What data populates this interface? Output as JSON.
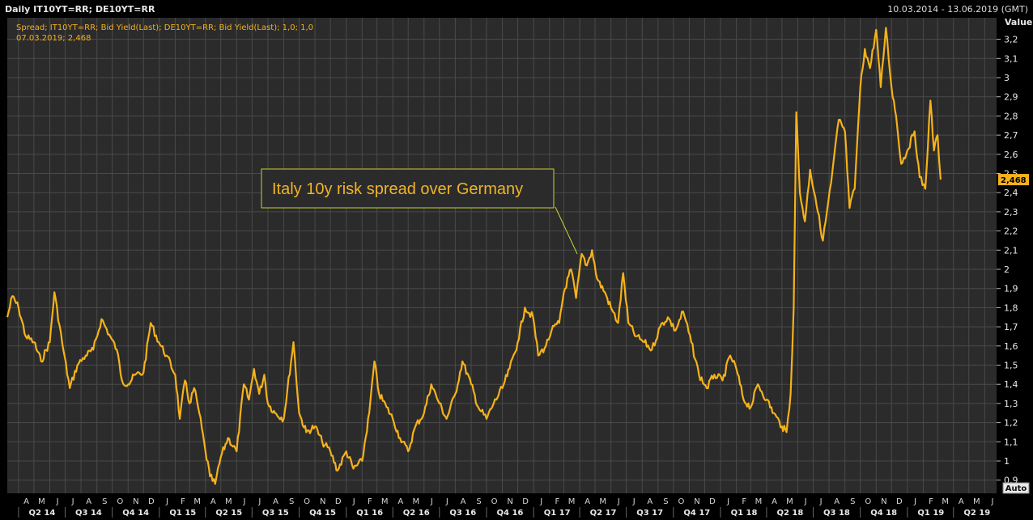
{
  "header": {
    "title": "Daily IT10YT=RR; DE10YT=RR",
    "date_range": "10.03.2014 - 13.06.2019 (GMT)"
  },
  "legend": {
    "line1": "Spread; IT10YT=RR; Bid Yield(Last); DE10YT=RR; Bid Yield(Last);  1,0; 1,0",
    "line2": "07.03.2019; 2,468"
  },
  "annotation": {
    "text": "Italy 10y risk spread over Germany"
  },
  "axis": {
    "value_header": "Value",
    "last_value_label": "2,468",
    "auto_label": "Auto"
  },
  "colors": {
    "background": "#000000",
    "plot_background": "#2b2b2b",
    "grid": "#4a4a4a",
    "series": "#f5b21a",
    "annotation_border": "#c8d232"
  },
  "chart_data": {
    "type": "line",
    "title": "Daily IT10YT=RR; DE10YT=RR",
    "ylim": [
      0.83,
      3.3
    ],
    "xlim": [
      "2014-03-10",
      "2019-06-13"
    ],
    "y_ticks": [
      0.9,
      1,
      1.1,
      1.2,
      1.3,
      1.4,
      1.5,
      1.6,
      1.7,
      1.8,
      1.9,
      2,
      2.1,
      2.2,
      2.3,
      2.4,
      2.5,
      2.6,
      2.7,
      2.8,
      2.9,
      3,
      3.1,
      3.2
    ],
    "y_tick_labels": [
      "0,9",
      "1",
      "1,1",
      "1,2",
      "1,3",
      "1,4",
      "1,5",
      "1,6",
      "1,7",
      "1,8",
      "1,9",
      "2",
      "2,1",
      "2,2",
      "2,3",
      "2,4",
      "2,5",
      "2,6",
      "2,7",
      "2,8",
      "2,9",
      "3",
      "3,1",
      "3,2"
    ],
    "grid": true,
    "month_labels": [
      "A",
      "M",
      "J",
      "J",
      "A",
      "S",
      "O",
      "N",
      "D",
      "J",
      "F",
      "M",
      "A",
      "M",
      "J",
      "J",
      "A",
      "S",
      "O",
      "N",
      "D",
      "J",
      "F",
      "M",
      "A",
      "M",
      "J",
      "J",
      "A",
      "S",
      "O",
      "N",
      "D",
      "J",
      "F",
      "M",
      "A",
      "M",
      "J",
      "J",
      "A",
      "S",
      "O",
      "N",
      "D",
      "J",
      "F",
      "M",
      "A",
      "M",
      "J",
      "J",
      "A",
      "S",
      "O",
      "N",
      "D",
      "J",
      "F",
      "M",
      "A",
      "M",
      "J"
    ],
    "quarter_labels": [
      "Q2 14",
      "Q3 14",
      "Q4 14",
      "Q1 15",
      "Q2 15",
      "Q3 15",
      "Q4 15",
      "Q1 16",
      "Q2 16",
      "Q3 16",
      "Q4 16",
      "Q1 17",
      "Q2 17",
      "Q3 17",
      "Q4 17",
      "Q1 18",
      "Q2 18",
      "Q3 18",
      "Q4 18",
      "Q1 19",
      "Q2 19"
    ],
    "series": [
      {
        "name": "Spread; IT10YT=RR; Bid Yield(Last); DE10YT=RR; Bid Yield(Last);  1,0; 1,0",
        "points": [
          [
            "2014-03-10",
            1.75
          ],
          [
            "2014-03-20",
            1.86
          ],
          [
            "2014-04-01",
            1.8
          ],
          [
            "2014-04-15",
            1.65
          ],
          [
            "2014-05-01",
            1.62
          ],
          [
            "2014-05-15",
            1.52
          ],
          [
            "2014-06-01",
            1.62
          ],
          [
            "2014-06-10",
            1.88
          ],
          [
            "2014-06-25",
            1.62
          ],
          [
            "2014-07-10",
            1.38
          ],
          [
            "2014-07-25",
            1.5
          ],
          [
            "2014-08-10",
            1.55
          ],
          [
            "2014-08-25",
            1.58
          ],
          [
            "2014-09-10",
            1.74
          ],
          [
            "2014-09-25",
            1.66
          ],
          [
            "2014-10-10",
            1.58
          ],
          [
            "2014-10-20",
            1.42
          ],
          [
            "2014-11-01",
            1.4
          ],
          [
            "2014-11-15",
            1.45
          ],
          [
            "2014-12-01",
            1.46
          ],
          [
            "2014-12-15",
            1.72
          ],
          [
            "2014-12-31",
            1.62
          ],
          [
            "2015-01-15",
            1.55
          ],
          [
            "2015-02-01",
            1.45
          ],
          [
            "2015-02-10",
            1.22
          ],
          [
            "2015-02-20",
            1.42
          ],
          [
            "2015-03-01",
            1.3
          ],
          [
            "2015-03-10",
            1.38
          ],
          [
            "2015-03-20",
            1.25
          ],
          [
            "2015-04-01",
            1.05
          ],
          [
            "2015-04-10",
            0.92
          ],
          [
            "2015-04-20",
            0.88
          ],
          [
            "2015-05-01",
            1.02
          ],
          [
            "2015-05-15",
            1.12
          ],
          [
            "2015-06-01",
            1.05
          ],
          [
            "2015-06-15",
            1.4
          ],
          [
            "2015-06-25",
            1.32
          ],
          [
            "2015-07-05",
            1.48
          ],
          [
            "2015-07-15",
            1.35
          ],
          [
            "2015-07-25",
            1.45
          ],
          [
            "2015-08-01",
            1.3
          ],
          [
            "2015-08-15",
            1.25
          ],
          [
            "2015-09-01",
            1.22
          ],
          [
            "2015-09-20",
            1.62
          ],
          [
            "2015-10-01",
            1.25
          ],
          [
            "2015-10-15",
            1.15
          ],
          [
            "2015-11-01",
            1.18
          ],
          [
            "2015-11-15",
            1.1
          ],
          [
            "2015-12-01",
            1.05
          ],
          [
            "2015-12-15",
            0.95
          ],
          [
            "2016-01-01",
            1.05
          ],
          [
            "2016-01-15",
            0.96
          ],
          [
            "2016-02-01",
            1.0
          ],
          [
            "2016-02-15",
            1.25
          ],
          [
            "2016-02-25",
            1.52
          ],
          [
            "2016-03-05",
            1.35
          ],
          [
            "2016-03-20",
            1.28
          ],
          [
            "2016-04-01",
            1.22
          ],
          [
            "2016-04-15",
            1.12
          ],
          [
            "2016-05-01",
            1.05
          ],
          [
            "2016-05-15",
            1.18
          ],
          [
            "2016-06-01",
            1.25
          ],
          [
            "2016-06-15",
            1.4
          ],
          [
            "2016-07-01",
            1.3
          ],
          [
            "2016-07-15",
            1.22
          ],
          [
            "2016-08-01",
            1.35
          ],
          [
            "2016-08-15",
            1.52
          ],
          [
            "2016-09-01",
            1.4
          ],
          [
            "2016-09-15",
            1.28
          ],
          [
            "2016-10-01",
            1.22
          ],
          [
            "2016-10-15",
            1.3
          ],
          [
            "2016-11-01",
            1.38
          ],
          [
            "2016-11-15",
            1.48
          ],
          [
            "2016-12-01",
            1.62
          ],
          [
            "2016-12-15",
            1.8
          ],
          [
            "2016-12-31",
            1.75
          ],
          [
            "2017-01-10",
            1.55
          ],
          [
            "2017-01-25",
            1.6
          ],
          [
            "2017-02-05",
            1.68
          ],
          [
            "2017-02-20",
            1.72
          ],
          [
            "2017-03-01",
            1.88
          ],
          [
            "2017-03-15",
            2.0
          ],
          [
            "2017-03-25",
            1.85
          ],
          [
            "2017-04-05",
            2.08
          ],
          [
            "2017-04-15",
            2.02
          ],
          [
            "2017-04-25",
            2.1
          ],
          [
            "2017-05-05",
            1.95
          ],
          [
            "2017-05-20",
            1.88
          ],
          [
            "2017-06-01",
            1.8
          ],
          [
            "2017-06-15",
            1.72
          ],
          [
            "2017-06-25",
            1.98
          ],
          [
            "2017-07-05",
            1.72
          ],
          [
            "2017-07-20",
            1.65
          ],
          [
            "2017-08-05",
            1.62
          ],
          [
            "2017-08-20",
            1.58
          ],
          [
            "2017-09-05",
            1.7
          ],
          [
            "2017-09-20",
            1.75
          ],
          [
            "2017-10-05",
            1.68
          ],
          [
            "2017-10-20",
            1.78
          ],
          [
            "2017-11-05",
            1.62
          ],
          [
            "2017-11-20",
            1.45
          ],
          [
            "2017-12-05",
            1.38
          ],
          [
            "2017-12-20",
            1.45
          ],
          [
            "2018-01-05",
            1.42
          ],
          [
            "2018-01-20",
            1.55
          ],
          [
            "2018-02-01",
            1.48
          ],
          [
            "2018-02-15",
            1.32
          ],
          [
            "2018-03-01",
            1.28
          ],
          [
            "2018-03-15",
            1.4
          ],
          [
            "2018-04-01",
            1.32
          ],
          [
            "2018-04-15",
            1.25
          ],
          [
            "2018-05-01",
            1.18
          ],
          [
            "2018-05-10",
            1.15
          ],
          [
            "2018-05-18",
            1.35
          ],
          [
            "2018-05-24",
            1.8
          ],
          [
            "2018-05-29",
            2.82
          ],
          [
            "2018-06-05",
            2.4
          ],
          [
            "2018-06-15",
            2.25
          ],
          [
            "2018-06-25",
            2.52
          ],
          [
            "2018-07-05",
            2.38
          ],
          [
            "2018-07-20",
            2.15
          ],
          [
            "2018-08-05",
            2.45
          ],
          [
            "2018-08-20",
            2.78
          ],
          [
            "2018-09-01",
            2.72
          ],
          [
            "2018-09-10",
            2.32
          ],
          [
            "2018-09-20",
            2.42
          ],
          [
            "2018-10-01",
            2.95
          ],
          [
            "2018-10-10",
            3.15
          ],
          [
            "2018-10-20",
            3.05
          ],
          [
            "2018-11-01",
            3.25
          ],
          [
            "2018-11-10",
            2.95
          ],
          [
            "2018-11-20",
            3.26
          ],
          [
            "2018-12-01",
            2.95
          ],
          [
            "2018-12-10",
            2.8
          ],
          [
            "2018-12-20",
            2.55
          ],
          [
            "2019-01-01",
            2.62
          ],
          [
            "2019-01-15",
            2.72
          ],
          [
            "2019-01-25",
            2.48
          ],
          [
            "2019-02-05",
            2.42
          ],
          [
            "2019-02-15",
            2.88
          ],
          [
            "2019-02-22",
            2.62
          ],
          [
            "2019-03-01",
            2.7
          ],
          [
            "2019-03-07",
            2.468
          ]
        ]
      }
    ],
    "annotations": [
      "Italy 10y risk spread over Germany"
    ]
  }
}
